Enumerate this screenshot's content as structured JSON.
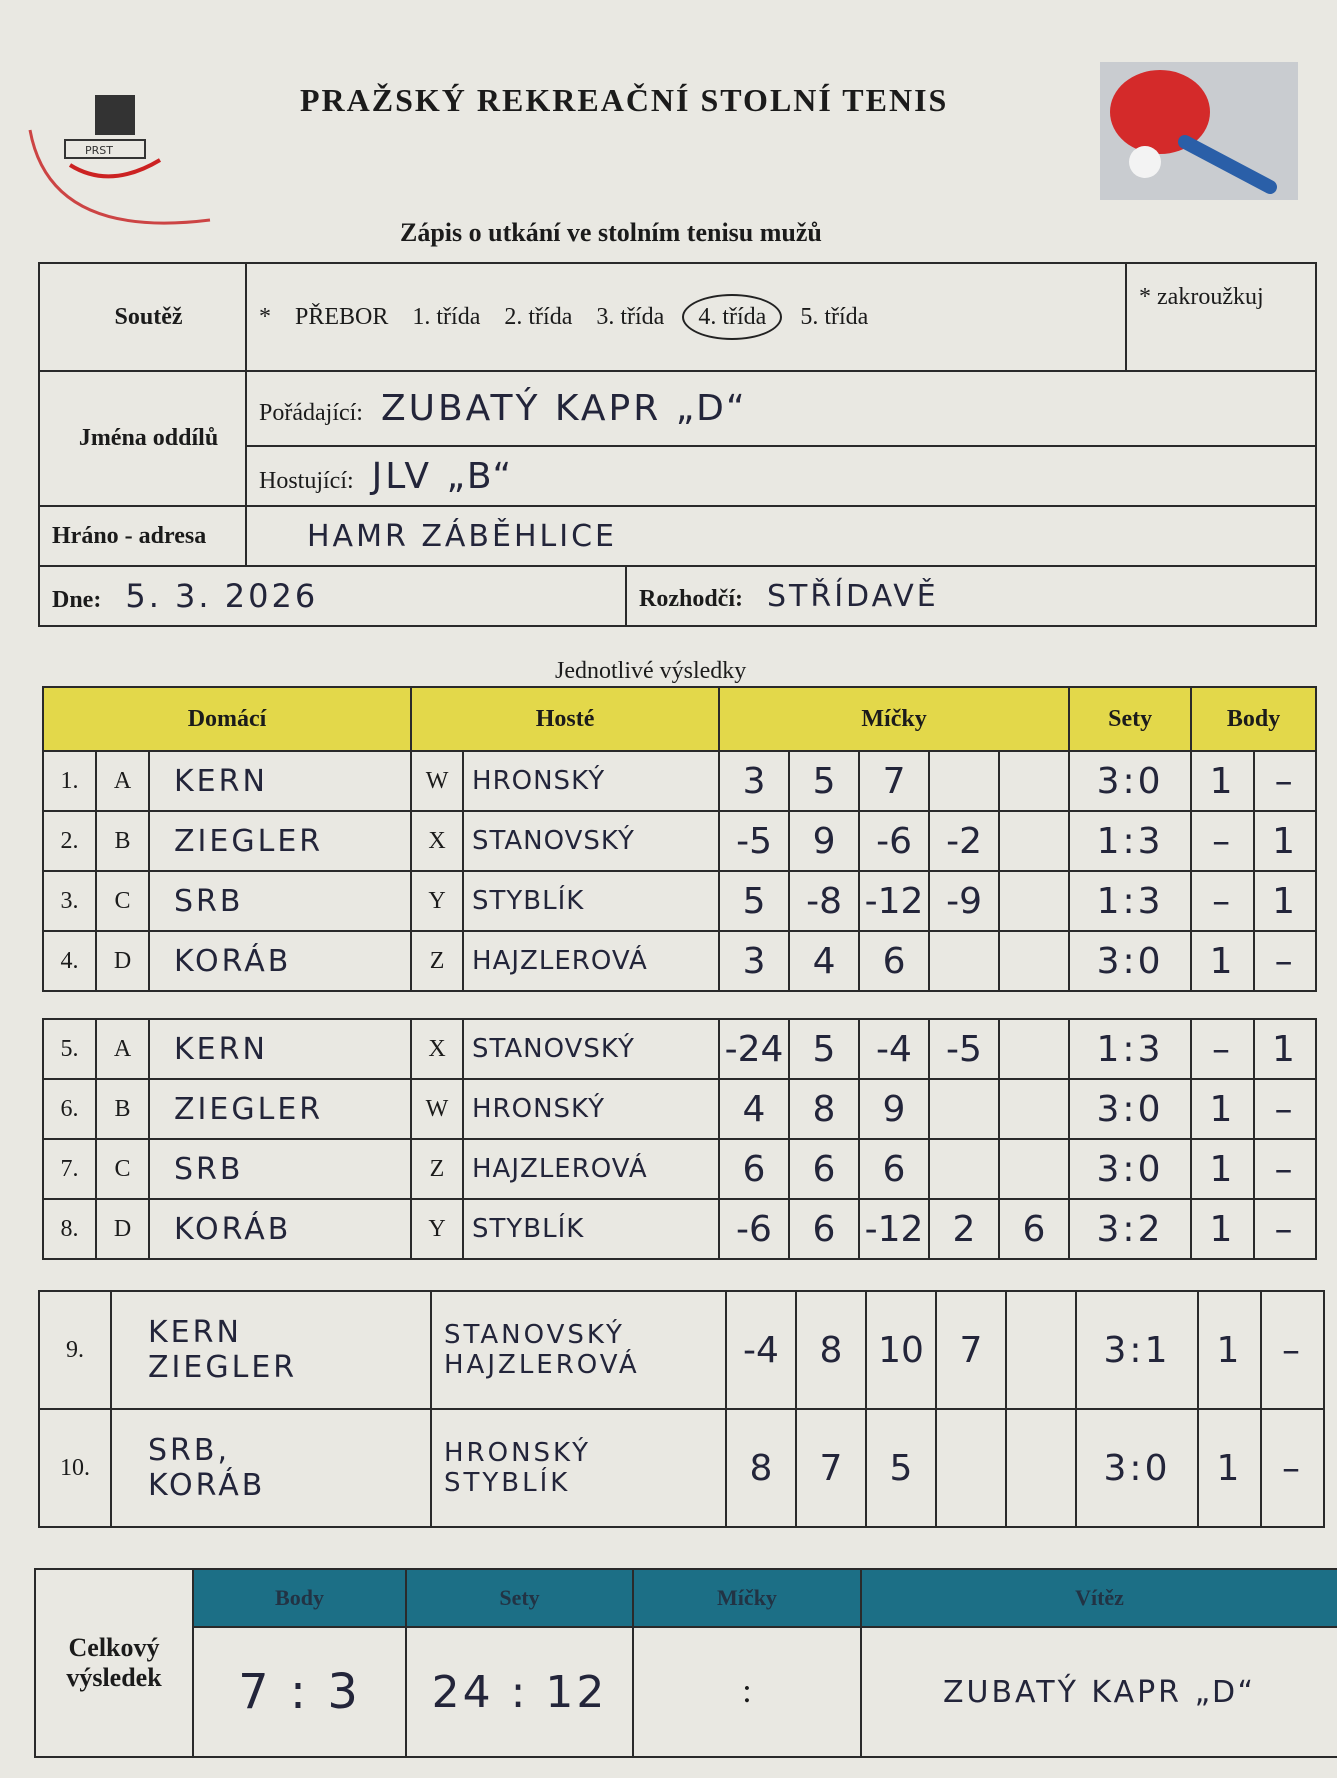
{
  "header": {
    "title": "PRAŽSKÝ REKREAČNÍ STOLNÍ TENIS",
    "subtitle": "Zápis o utkání ve stolním tenisu mužů",
    "logo_text": "PRAŽSKÝ REKREAČNÍ STOLNÍ TENIS",
    "logo_badge": "PRST"
  },
  "info": {
    "soutez_label": "Soutěž",
    "asterisk": "*",
    "classes": [
      "PŘEBOR",
      "1. třída",
      "2. třída",
      "3. třída",
      "4. třída",
      "5. třída"
    ],
    "selected_class": "4. třída",
    "note": "* zakroužkuj",
    "teams_label": "Jména oddílů",
    "home_label": "Pořádající:",
    "home_value": "ZUBATÝ KAPR „D“",
    "guest_label": "Hostující:",
    "guest_value": "JLV „B“",
    "address_label": "Hráno - adresa",
    "address_value": "HAMR ZÁBĚHLICE",
    "date_label": "Dne:",
    "date_value": "5. 3. 2026",
    "referee_label": "Rozhodčí:",
    "referee_value": "STŘÍDAVĚ"
  },
  "results": {
    "caption": "Jednotlivé výsledky",
    "headers": {
      "home": "Domácí",
      "guest": "Hosté",
      "balls": "Míčky",
      "sets": "Sety",
      "points": "Body"
    },
    "singles": [
      {
        "no": "1.",
        "hl": "A",
        "home": "KERN",
        "gl": "W",
        "guest": "HRONSKÝ",
        "balls": [
          "3",
          "5",
          "7",
          "",
          ""
        ],
        "sets": "3:0",
        "ph": "1",
        "pg": "–"
      },
      {
        "no": "2.",
        "hl": "B",
        "home": "ZIEGLER",
        "gl": "X",
        "guest": "STANOVSKÝ",
        "balls": [
          "-5",
          "9",
          "-6",
          "-2",
          ""
        ],
        "sets": "1:3",
        "ph": "–",
        "pg": "1"
      },
      {
        "no": "3.",
        "hl": "C",
        "home": "SRB",
        "gl": "Y",
        "guest": "STYBLÍK",
        "balls": [
          "5",
          "-8",
          "-12",
          "-9",
          ""
        ],
        "sets": "1:3",
        "ph": "–",
        "pg": "1"
      },
      {
        "no": "4.",
        "hl": "D",
        "home": "KORÁB",
        "gl": "Z",
        "guest": "HAJZLEROVÁ",
        "balls": [
          "3",
          "4",
          "6",
          "",
          ""
        ],
        "sets": "3:0",
        "ph": "1",
        "pg": "–"
      },
      {
        "no": "5.",
        "hl": "A",
        "home": "KERN",
        "gl": "X",
        "guest": "STANOVSKÝ",
        "balls": [
          "-24",
          "5",
          "-4",
          "-5",
          ""
        ],
        "sets": "1:3",
        "ph": "–",
        "pg": "1"
      },
      {
        "no": "6.",
        "hl": "B",
        "home": "ZIEGLER",
        "gl": "W",
        "guest": "HRONSKÝ",
        "balls": [
          "4",
          "8",
          "9",
          "",
          ""
        ],
        "sets": "3:0",
        "ph": "1",
        "pg": "–"
      },
      {
        "no": "7.",
        "hl": "C",
        "home": "SRB",
        "gl": "Z",
        "guest": "HAJZLEROVÁ",
        "balls": [
          "6",
          "6",
          "6",
          "",
          ""
        ],
        "sets": "3:0",
        "ph": "1",
        "pg": "–"
      },
      {
        "no": "8.",
        "hl": "D",
        "home": "KORÁB",
        "gl": "Y",
        "guest": "STYBLÍK",
        "balls": [
          "-6",
          "6",
          "-12",
          "2",
          "6"
        ],
        "sets": "3:2",
        "ph": "1",
        "pg": "–"
      }
    ],
    "doubles": [
      {
        "no": "9.",
        "home1": "KERN",
        "home2": "ZIEGLER",
        "guest1": "STANOVSKÝ",
        "guest2": "HAJZLEROVÁ",
        "balls": [
          "-4",
          "8",
          "10",
          "7",
          ""
        ],
        "sets": "3:1",
        "ph": "1",
        "pg": "–"
      },
      {
        "no": "10.",
        "home1": "SRB,",
        "home2": "KORÁB",
        "guest1": "HRONSKÝ",
        "guest2": "STYBLÍK",
        "balls": [
          "8",
          "7",
          "5",
          "",
          ""
        ],
        "sets": "3:0",
        "ph": "1",
        "pg": "–"
      }
    ]
  },
  "summary": {
    "label": "Celkový výsledek",
    "headers": [
      "Body",
      "Sety",
      "Míčky",
      "Vítěz"
    ],
    "points": "7 : 3",
    "sets": "24 : 12",
    "balls": ":",
    "winner": "ZUBATÝ KAPR „D“"
  },
  "colors": {
    "header_yellow": "#e3d84a",
    "summary_teal": "#1c6f86",
    "ink": "#23253a",
    "paper": "#e9e8e2"
  }
}
